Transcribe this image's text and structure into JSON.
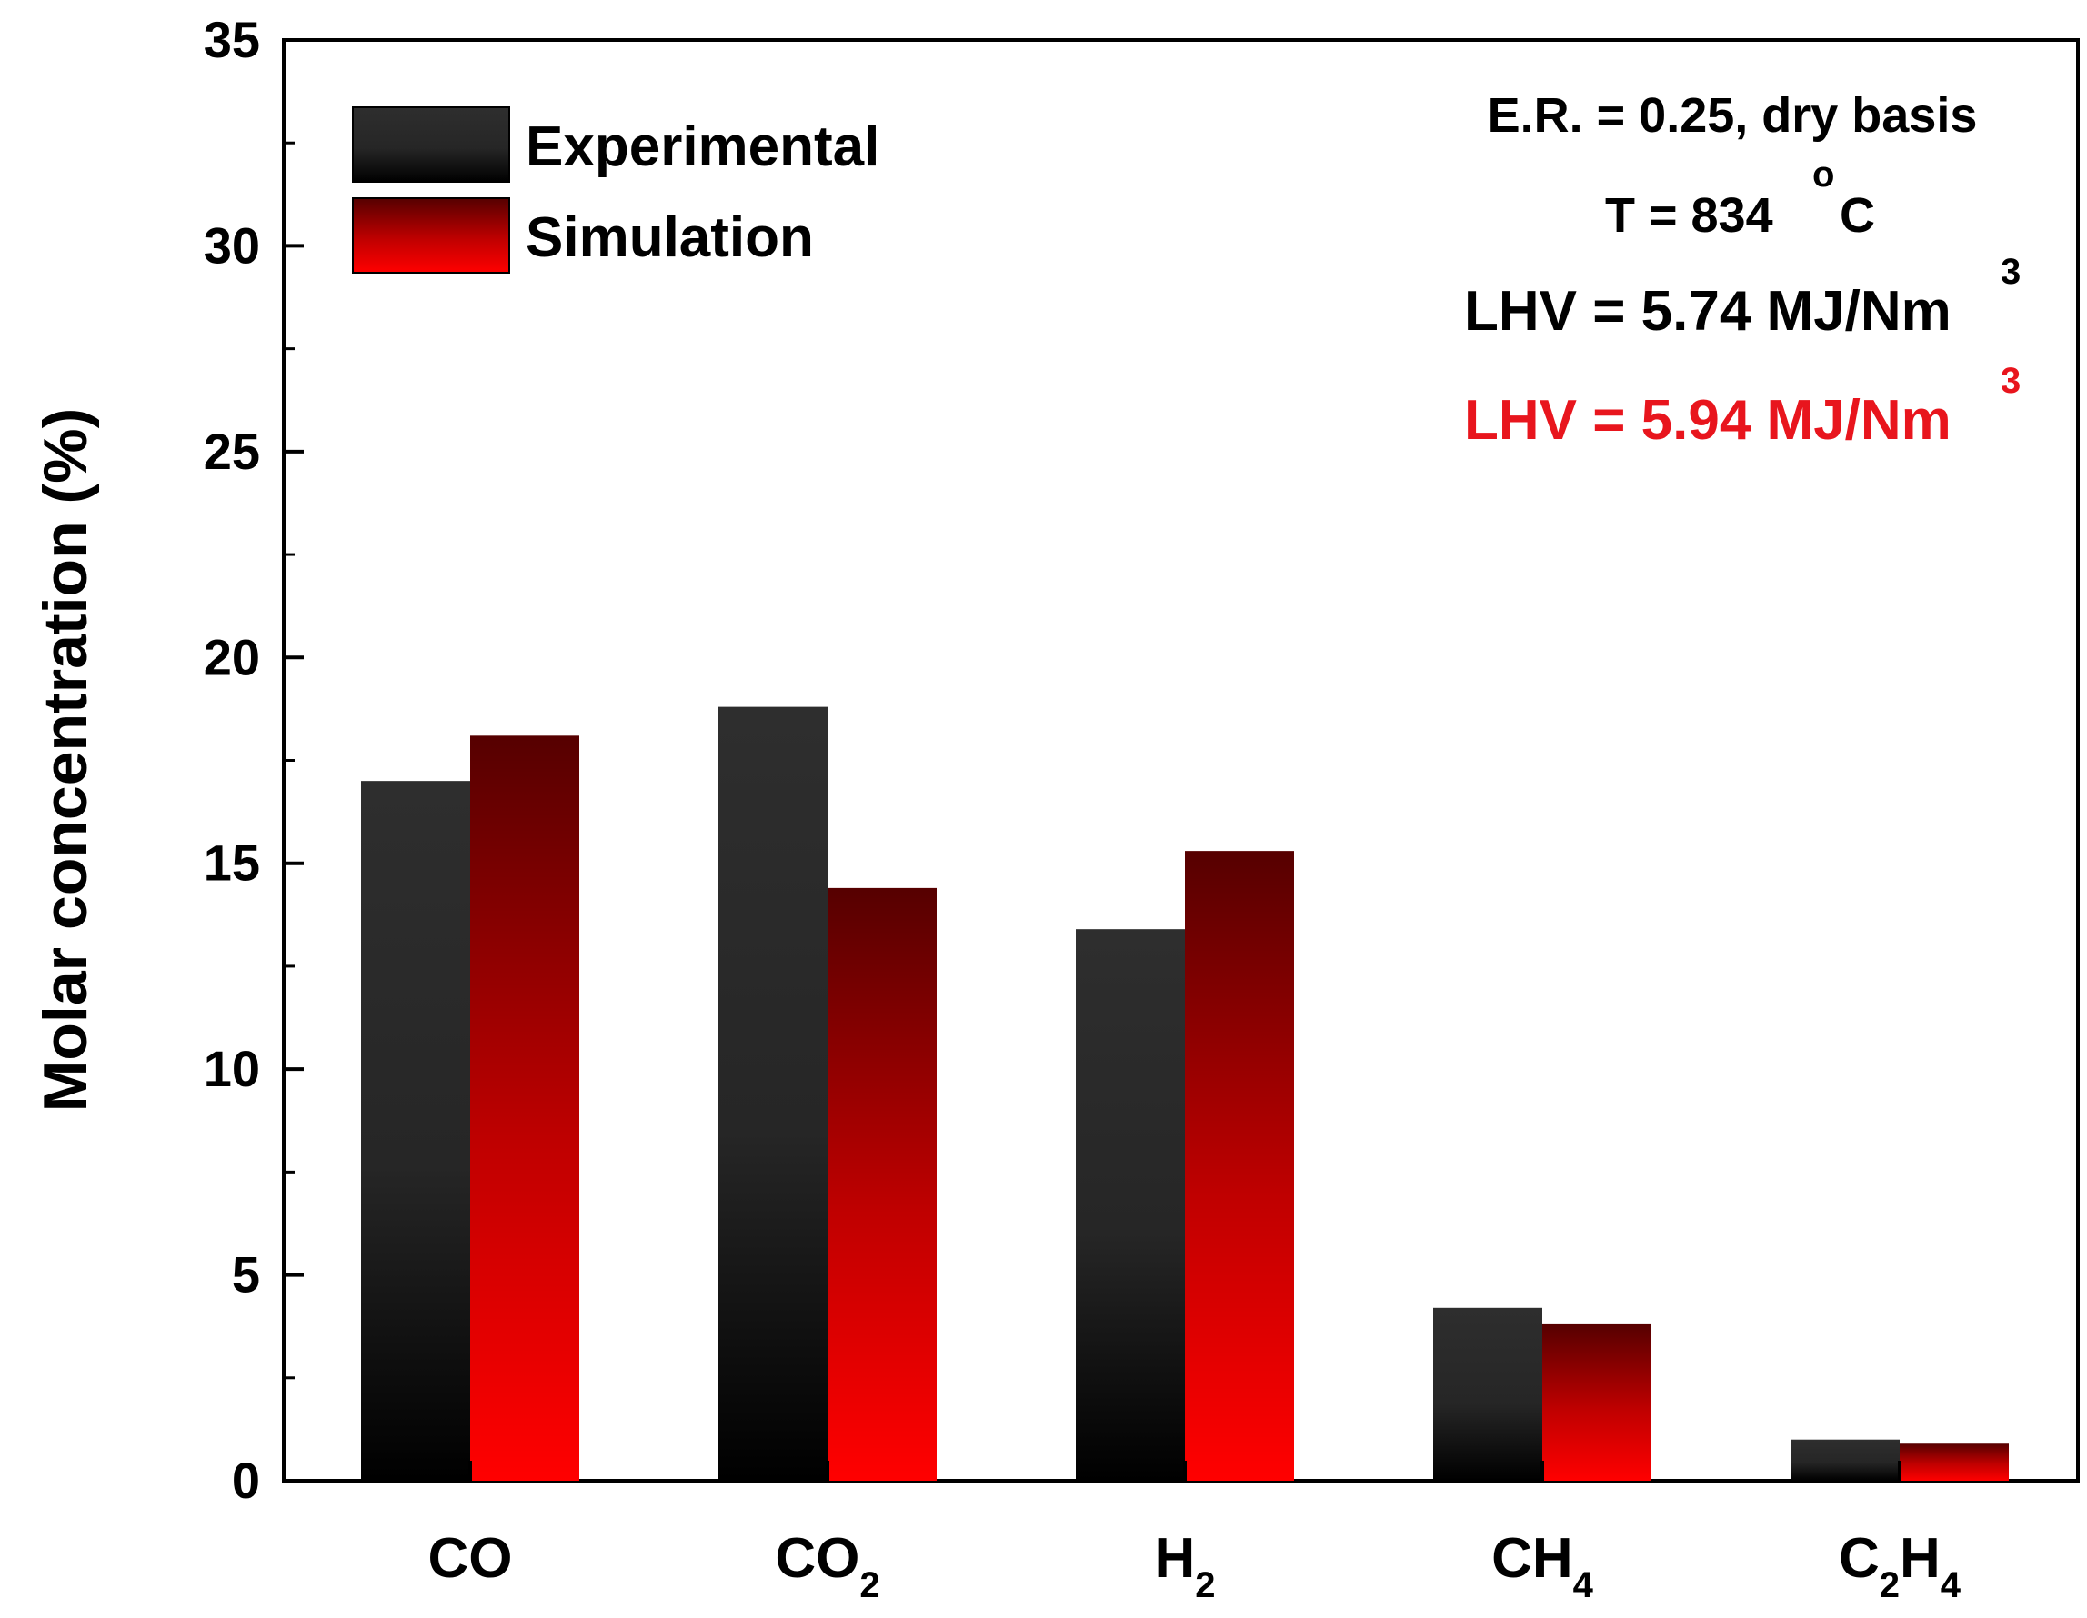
{
  "chart_data": {
    "type": "bar",
    "categories": [
      {
        "base": "CO",
        "sub": ""
      },
      {
        "base": "CO",
        "sub": "2"
      },
      {
        "base": "H",
        "sub": "2"
      },
      {
        "base": "CH",
        "sub": "4"
      },
      {
        "base": "C",
        "sub": "2",
        "base2": "H",
        "sub2": "4"
      }
    ],
    "series": [
      {
        "name": "Experimental",
        "values": [
          17.0,
          18.8,
          13.4,
          4.2,
          1.0
        ],
        "color_top": "#2e2e2e",
        "color_bottom": "#000000"
      },
      {
        "name": "Simulation",
        "values": [
          18.1,
          14.4,
          15.3,
          3.8,
          0.9
        ],
        "color_top": "#5a0000",
        "color_bottom": "#ff0000"
      }
    ],
    "title": "",
    "xlabel": "",
    "ylabel": "Molar concentration (%)",
    "ylim": [
      0,
      35
    ],
    "yticks": [
      0,
      5,
      10,
      15,
      20,
      25,
      30,
      35
    ],
    "legend_position": "top-left",
    "annotations": {
      "conditions": "E.R. = 0.25, dry basis",
      "temperature_prefix": "T = 834 ",
      "temperature_degree": "o",
      "temperature_unit": "C",
      "lhv_experimental": "LHV = 5.74 MJ/Nm",
      "lhv_simulation": "LHV = 5.94 MJ/Nm",
      "lhv_superscript": "3",
      "lhv_experimental_color": "#000000",
      "lhv_simulation_color": "#e8151d"
    }
  }
}
